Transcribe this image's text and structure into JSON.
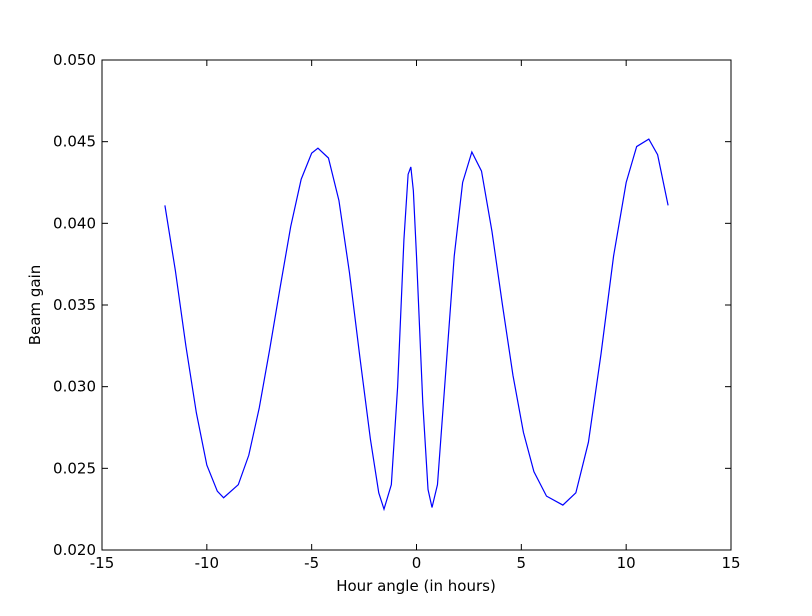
{
  "chart_data": {
    "type": "line",
    "xlabel": "Hour angle (in hours)",
    "ylabel": "Beam gain",
    "x": [
      -12,
      -11.5,
      -11,
      -10.5,
      -10,
      -9.5,
      -9.2,
      -8.5,
      -8,
      -7.5,
      -7,
      -6.5,
      -6,
      -5.5,
      -5,
      -4.7,
      -4.2,
      -3.7,
      -3.2,
      -2.7,
      -2.2,
      -1.8,
      -1.55,
      -1.2,
      -0.9,
      -0.6,
      -0.4,
      -0.27,
      -0.15,
      0,
      0.3,
      0.55,
      0.74,
      1.0,
      1.4,
      1.8,
      2.2,
      2.64,
      3.1,
      3.6,
      4.1,
      4.6,
      5.1,
      5.6,
      6.2,
      6.98,
      7.6,
      8.2,
      8.8,
      9.4,
      10,
      10.5,
      11.08,
      11.5,
      12
    ],
    "series": [
      {
        "color": "#0000ff",
        "values": [
          0.0411,
          0.0371,
          0.0325,
          0.0284,
          0.0252,
          0.0236,
          0.0232,
          0.024,
          0.0258,
          0.0287,
          0.0323,
          0.0361,
          0.0398,
          0.0427,
          0.0443,
          0.0446,
          0.044,
          0.0414,
          0.037,
          0.0318,
          0.0268,
          0.0235,
          0.0225,
          0.024,
          0.03,
          0.039,
          0.043,
          0.04345,
          0.042,
          0.038,
          0.029,
          0.0237,
          0.0226,
          0.024,
          0.031,
          0.038,
          0.0425,
          0.04437,
          0.0432,
          0.0395,
          0.035,
          0.0307,
          0.0272,
          0.0248,
          0.0233,
          0.02275,
          0.0235,
          0.0266,
          0.032,
          0.038,
          0.0425,
          0.0447,
          0.04516,
          0.0442,
          0.0411
        ]
      }
    ],
    "xlim": [
      -15,
      15
    ],
    "xticks": [
      -15,
      -10,
      -5,
      0,
      5,
      10,
      15
    ],
    "ylim": [
      0.02,
      0.05
    ],
    "yticks": [
      {
        "value": 0.02,
        "label": "0.020"
      },
      {
        "value": 0.025,
        "label": "0.025"
      },
      {
        "value": 0.03,
        "label": "0.030"
      },
      {
        "value": 0.035,
        "label": "0.035"
      },
      {
        "value": 0.04,
        "label": "0.040"
      },
      {
        "value": 0.045,
        "label": "0.045"
      },
      {
        "value": 0.05,
        "label": "0.050"
      }
    ]
  }
}
